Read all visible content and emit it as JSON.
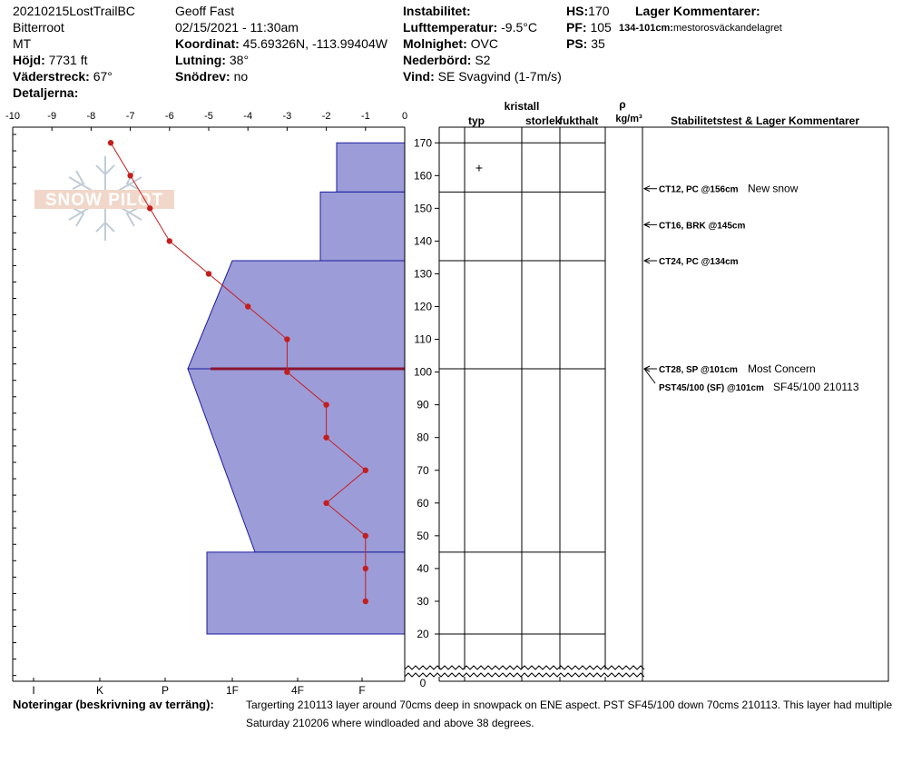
{
  "header": {
    "site": "20210215LostTrailBC",
    "region": "Bitterroot",
    "state": "MT",
    "elevation_label": "Höjd:",
    "elevation_value": "7731 ft",
    "aspect_label": "Väderstreck:",
    "aspect_value": "67°",
    "details_label": "Detaljerna:",
    "observer": "Geoff Fast",
    "datetime": "02/15/2021 - 11:30am",
    "coord_label": "Koordinat:",
    "coord_value": "45.69326N, -113.99404W",
    "slope_label": "Lutning:",
    "slope_value": "38°",
    "drift_label": "Snödrev:",
    "drift_value": "no",
    "instability_label": "Instabilitet:",
    "instability_value": "",
    "airtemp_label": "Lufttemperatur:",
    "airtemp_value": "-9.5°C",
    "sky_label": "Molnighet:",
    "sky_value": "OVC",
    "precip_label": "Nederbörd:",
    "precip_value": "S2",
    "wind_label": "Vind:",
    "wind_value": "SE  Svagvind (1-7m/s)",
    "hs_label": "HS:",
    "hs_value": "170",
    "pf_label": "PF:",
    "pf_value": "105",
    "ps_label": "PS:",
    "ps_value": "35",
    "layer_comments_label": "Lager Kommentarer:",
    "layer_comment_range": "134-101cm:",
    "layer_comment_text": "mestorosväckandelagret"
  },
  "columns": {
    "crystal": "kristall",
    "type": "typ",
    "size": "storlek",
    "moisture": "fukthalt",
    "rho": "ρ",
    "density_unit": "kg/m³",
    "stability": "Stabilitetstest & Lager Kommentarer"
  },
  "crystal_type_marks": [
    {
      "top": 170,
      "bottom": 155,
      "symbol": "+"
    }
  ],
  "stability_tests": [
    {
      "depth": 156,
      "code": "CT12, PC @156cm",
      "comment": "New snow"
    },
    {
      "depth": 145,
      "code": "CT16, BRK @145cm",
      "comment": ""
    },
    {
      "depth": 134,
      "code": "CT24, PC @134cm",
      "comment": ""
    },
    {
      "depth": 101,
      "code": "CT28, SP @101cm",
      "comment": "Most Concern"
    },
    {
      "depth": 101,
      "code": "PST45/100 (SF) @101cm",
      "comment": "SF45/100 210113"
    }
  ],
  "notes": {
    "label": "Noteringar (beskrivning av terräng):",
    "line1": "Targerting 210113 layer around 70cms deep in snowpack on ENE aspect. PST SF45/100 down 70cms 210113. This layer had multiple",
    "line2": "Saturday 210206 where windloaded and above 38 degrees."
  },
  "chart_data": {
    "type": "line",
    "temperature_axis": {
      "ticks": [
        "-10",
        "-9",
        "-8",
        "-7",
        "-6",
        "-5",
        "-4",
        "-3",
        "-2",
        "-1",
        "0"
      ],
      "range": [
        -10,
        0
      ]
    },
    "hardness_axis": {
      "ticks": [
        "I",
        "K",
        "P",
        "1F",
        "4F",
        "F"
      ]
    },
    "height_axis": {
      "ticks": [
        "170",
        "160",
        "150",
        "140",
        "130",
        "120",
        "110",
        "100",
        "90",
        "80",
        "70",
        "60",
        "50",
        "40",
        "30",
        "20",
        "0"
      ],
      "range": [
        0,
        170
      ]
    },
    "temperature_profile": {
      "depth": [
        170,
        160,
        150,
        140,
        130,
        120,
        110,
        100,
        90,
        80,
        70,
        60,
        50,
        40,
        30
      ],
      "temp": [
        -7.5,
        -7.0,
        -6.5,
        -6.0,
        -5.0,
        -4.0,
        -3.0,
        -3.0,
        -2.0,
        -2.0,
        -1.0,
        -2.0,
        -1.0,
        -1.0,
        -1.0
      ]
    },
    "hardness_layers": [
      {
        "top": 170,
        "bottom": 155,
        "hardness_top": "F+",
        "hardness_bottom": "F+"
      },
      {
        "top": 155,
        "bottom": 134,
        "hardness_top": "4F-",
        "hardness_bottom": "4F-"
      },
      {
        "top": 134,
        "bottom": 101,
        "hardness_top": "1F",
        "hardness_bottom": "P-"
      },
      {
        "top": 101,
        "bottom": 45,
        "hardness_top": "P-",
        "hardness_bottom": "1F-"
      },
      {
        "top": 45,
        "bottom": 20,
        "hardness_top": "1F+",
        "hardness_bottom": "1F+"
      }
    ],
    "highlighted_layer_depth": 101,
    "layer_boundaries": [
      170,
      155,
      134,
      101,
      45,
      20
    ],
    "colors": {
      "layer_fill": "#9c9cd8",
      "layer_stroke": "#1a1aa0",
      "temp_line": "#c41e1e",
      "concern_line": "#8a1430"
    }
  }
}
